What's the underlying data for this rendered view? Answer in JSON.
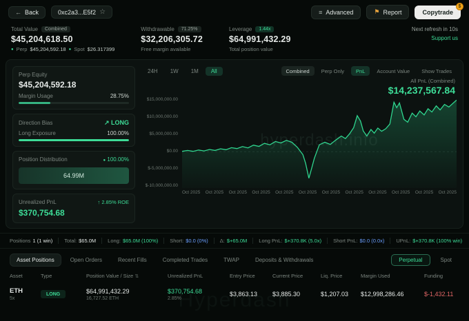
{
  "topbar": {
    "back_label": "Back",
    "address": "0xc2a3...E5f2",
    "advanced_label": "Advanced",
    "report_label": "Report",
    "copytrade_label": "Copytrade"
  },
  "stats": {
    "total": {
      "label": "Total Value",
      "badge": "Combined",
      "value": "$45,204,618.50",
      "perp_label": "Perp",
      "perp_value": "$45,204,592.18",
      "spot_label": "Spot",
      "spot_value": "$26.317399"
    },
    "withdrawable": {
      "label": "Withdrawable",
      "badge": "71.25%",
      "value": "$32,206,305.72",
      "sub": "Free margin available"
    },
    "leverage": {
      "label": "Leverage",
      "badge": "1.44x",
      "value": "$64,991,432.29",
      "sub": "Total position value"
    },
    "refresh": "Next refresh in 10s",
    "support": "Support us"
  },
  "left_panel": {
    "perp_equity_label": "Perp Equity",
    "perp_equity_value": "$45,204,592.18",
    "margin_usage_label": "Margin Usage",
    "margin_usage_value": "28.75%",
    "margin_usage_pct": 28.75,
    "direction_bias_label": "Direction Bias",
    "direction_bias_value": "LONG",
    "long_exposure_label": "Long Exposure",
    "long_exposure_value": "100.00%",
    "long_exposure_pct": 100,
    "position_distribution_label": "Position Distribution",
    "position_distribution_value": "100.00%",
    "distribution_bar_label": "64.99M",
    "unrealized_pnl_label": "Unrealized PnL",
    "roe_value": "2.85% ROE",
    "unrealized_pnl_value": "$370,754.68"
  },
  "chart": {
    "ranges": [
      "24H",
      "1W",
      "1M",
      "All"
    ],
    "toggles": [
      "Combined",
      "Perp Only",
      "PnL",
      "Account Value",
      "Show Trades"
    ],
    "pnl_label": "All PnL (Combined)",
    "pnl_value": "$14,237,567.84"
  },
  "chart_data": {
    "type": "area",
    "title": "All PnL (Combined)",
    "current_value": "$14,237,567.84",
    "units": "x: fraction of time axis (Oct 2025), y: PnL in USD millions",
    "ylim_millions": [
      -10,
      15
    ],
    "y_ticks": [
      "$15,000,000.00",
      "$10,000,000.00",
      "$5,000,000.00",
      "$0.00",
      "$-5,000,000.00",
      "$-10,000,000.00"
    ],
    "x_ticks": [
      "Oct 2025",
      "Oct 2025",
      "Oct 2025",
      "Oct 2025",
      "Oct 2025",
      "Oct 2025",
      "Oct 2025",
      "Oct 2025",
      "Oct 2025",
      "Oct 2025",
      "Oct 2025",
      "Oct 2025"
    ],
    "series": [
      {
        "name": "All PnL (Combined)",
        "color": "#2fd68f",
        "points": [
          [
            0,
            0.1
          ],
          [
            0.02,
            0.35
          ],
          [
            0.04,
            0.1
          ],
          [
            0.06,
            0.45
          ],
          [
            0.08,
            0.2
          ],
          [
            0.1,
            0.6
          ],
          [
            0.12,
            0.35
          ],
          [
            0.14,
            0.8
          ],
          [
            0.16,
            0.55
          ],
          [
            0.18,
            1.1
          ],
          [
            0.2,
            0.85
          ],
          [
            0.22,
            1.4
          ],
          [
            0.24,
            1.05
          ],
          [
            0.26,
            1.8
          ],
          [
            0.28,
            1.45
          ],
          [
            0.3,
            2.3
          ],
          [
            0.32,
            1.9
          ],
          [
            0.34,
            2.8
          ],
          [
            0.36,
            2.4
          ],
          [
            0.38,
            3.1
          ],
          [
            0.4,
            2.6
          ],
          [
            0.42,
            1.2
          ],
          [
            0.44,
            -0.8
          ],
          [
            0.45,
            -3.2
          ],
          [
            0.462,
            -7.3
          ],
          [
            0.472,
            -4.6
          ],
          [
            0.482,
            -1.8
          ],
          [
            0.5,
            1.9
          ],
          [
            0.52,
            2.6
          ],
          [
            0.54,
            2.0
          ],
          [
            0.56,
            3.2
          ],
          [
            0.58,
            4.3
          ],
          [
            0.595,
            3.6
          ],
          [
            0.61,
            4.9
          ],
          [
            0.625,
            6.6
          ],
          [
            0.638,
            9.9
          ],
          [
            0.65,
            8.4
          ],
          [
            0.66,
            5.7
          ],
          [
            0.673,
            4.3
          ],
          [
            0.688,
            6.1
          ],
          [
            0.7,
            5.1
          ],
          [
            0.713,
            6.5
          ],
          [
            0.727,
            5.6
          ],
          [
            0.742,
            6.3
          ],
          [
            0.757,
            7.6
          ],
          [
            0.772,
            13.6
          ],
          [
            0.782,
            12.1
          ],
          [
            0.792,
            13.4
          ],
          [
            0.808,
            8.9
          ],
          [
            0.822,
            8.1
          ],
          [
            0.838,
            10.6
          ],
          [
            0.852,
            9.6
          ],
          [
            0.866,
            11.2
          ],
          [
            0.882,
            10.1
          ],
          [
            0.896,
            11.8
          ],
          [
            0.91,
            10.9
          ],
          [
            0.926,
            12.6
          ],
          [
            0.94,
            11.5
          ],
          [
            0.956,
            13.0
          ],
          [
            0.972,
            12.3
          ],
          [
            1,
            14.2
          ]
        ]
      }
    ],
    "grid": false,
    "legend": "none"
  },
  "summary": {
    "items": [
      {
        "label": "Positions",
        "value": "1 (1 win)"
      },
      {
        "label": "Total:",
        "value": "$65.0M"
      },
      {
        "label": "Long:",
        "value": "$65.0M (100%)"
      },
      {
        "label": "Short:",
        "value": "$0.0 (0%)"
      },
      {
        "label": "Δ:",
        "value": "$+65.0M"
      },
      {
        "label": "Long PnL:",
        "value": "$+370.8K (5.0x)"
      },
      {
        "label": "Short PnL:",
        "value": "$0.0 (0.0x)"
      },
      {
        "label": "UPnL:",
        "value": "$+370.8K (100% win)"
      }
    ]
  },
  "tabs": {
    "items": [
      "Asset Positions",
      "Open Orders",
      "Recent Fills",
      "Completed Trades",
      "TWAP",
      "Deposits & Withdrawals"
    ],
    "right": [
      "Perpetual",
      "Spot"
    ]
  },
  "table": {
    "headers": [
      "Asset",
      "Type",
      "Position Value / Size",
      "Unrealized PnL",
      "Entry Price",
      "Current Price",
      "Liq. Price",
      "Margin Used",
      "Funding"
    ],
    "rows": [
      {
        "asset": "ETH",
        "leverage": "5x",
        "type": "LONG",
        "position_value": "$64,991,432.29",
        "size": "16,727.52 ETH",
        "unrealized_pnl": "$370,754.68",
        "roe": "2.85%",
        "entry_price": "$3,863.13",
        "current_price": "$3,885.30",
        "liq_price": "$1,207.03",
        "margin_used": "$12,998,286.46",
        "funding": "$-1,432.11"
      }
    ]
  },
  "watermark_chart": "hyperdash.info",
  "watermark_table": "Hyperdash"
}
